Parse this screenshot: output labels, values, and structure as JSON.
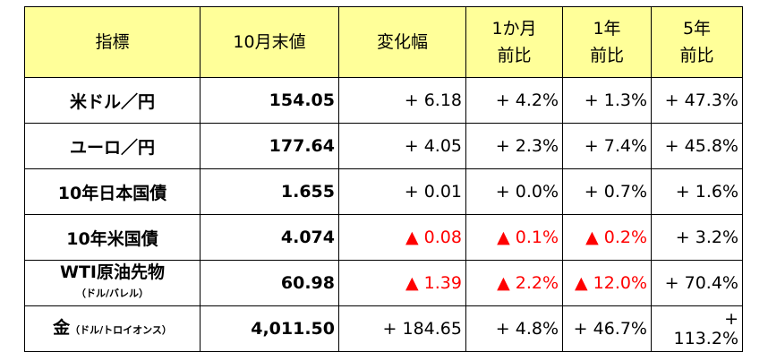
{
  "table": {
    "header": [
      "指標",
      "10月末値",
      "変化幅",
      [
        "1か月",
        "前比"
      ],
      [
        "1年",
        "前比"
      ],
      [
        "5年",
        "前比"
      ]
    ],
    "rows": [
      {
        "label": "米ドル／円",
        "values": [
          "154.05",
          "+ 6.18",
          "+ 4.2%",
          "+ 1.3%",
          "+ 47.3%"
        ],
        "colors": [
          "#000000",
          "#000000",
          "#000000",
          "#000000",
          "#000000"
        ]
      },
      {
        "label": "ユーロ／円",
        "values": [
          "177.64",
          "+ 4.05",
          "+ 2.3%",
          "+ 7.4%",
          "+ 45.8%"
        ],
        "colors": [
          "#000000",
          "#000000",
          "#000000",
          "#000000",
          "#000000"
        ]
      },
      {
        "label": "10年日本国債",
        "values": [
          "1.655",
          "+ 0.01",
          "+ 0.0%",
          "+ 0.7%",
          "+ 1.6%"
        ],
        "colors": [
          "#000000",
          "#000000",
          "#000000",
          "#000000",
          "#000000"
        ]
      },
      {
        "label": "10年米国債",
        "values": [
          "4.074",
          "▲ 0.08",
          "▲ 0.1%",
          "▲ 0.2%",
          "+ 3.2%"
        ],
        "colors": [
          "#000000",
          "#ff0000",
          "#ff0000",
          "#ff0000",
          "#000000"
        ]
      },
      {
        "label": "WTI原油先物",
        "note": "（ドル/バレル）",
        "note_inline": false,
        "values": [
          "60.98",
          "▲ 1.39",
          "▲ 2.2%",
          "▲ 12.0%",
          "+ 70.4%"
        ],
        "colors": [
          "#000000",
          "#ff0000",
          "#ff0000",
          "#ff0000",
          "#000000"
        ]
      },
      {
        "label": "金",
        "note": "（ドル/トロイオンス）",
        "note_inline": true,
        "values": [
          "4,011.50",
          "+ 184.65",
          "+ 4.8%",
          "+ 46.7%",
          "+ 113.2%"
        ],
        "colors": [
          "#000000",
          "#000000",
          "#000000",
          "#000000",
          "#000000"
        ]
      }
    ]
  }
}
